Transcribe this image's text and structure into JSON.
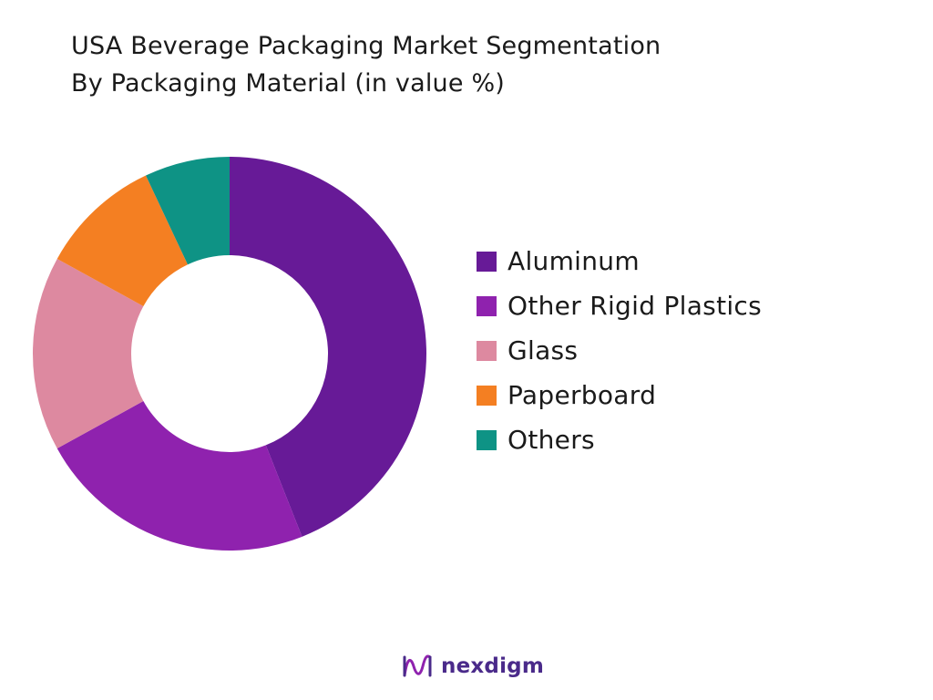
{
  "title": {
    "line1": "USA Beverage Packaging Market Segmentation",
    "line2": "By Packaging Material (in value %)"
  },
  "chart_data": {
    "type": "pie",
    "subtype": "donut",
    "title": "USA Beverage Packaging Market Segmentation By Packaging Material (in value %)",
    "categories": [
      "Aluminum",
      "Other Rigid Plastics",
      "Glass",
      "Paperboard",
      "Others"
    ],
    "values": [
      44,
      23,
      16,
      10,
      7
    ],
    "colors": [
      "#671a97",
      "#8f22ae",
      "#dd89a0",
      "#f47f22",
      "#0e9385"
    ],
    "legend_position": "right"
  },
  "brand": {
    "name": "nexdigm",
    "icon": "nexdigm-logo-icon",
    "color": "#4a2a8a"
  }
}
